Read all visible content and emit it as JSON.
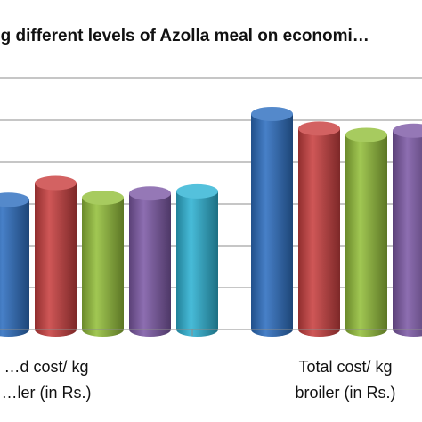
{
  "chart_data": {
    "type": "bar",
    "title": "…ng different levels of Azolla meal on economi…",
    "categories": [
      {
        "line1": "…d cost/ kg",
        "line2": "…ler (in Rs.)"
      },
      {
        "line1": "Total cost/ kg",
        "line2": "broiler (in Rs.)"
      }
    ],
    "series": [
      {
        "color": "#2e6fc0",
        "values": [
          62,
          103
        ]
      },
      {
        "color": "#c94040",
        "values": [
          70,
          96
        ]
      },
      {
        "color": "#94bf3c",
        "values": [
          63,
          93
        ]
      },
      {
        "color": "#7e5aa6",
        "values": [
          65,
          95
        ]
      },
      {
        "color": "#2fb3d4",
        "values": [
          66,
          null
        ]
      }
    ],
    "ylim": [
      0,
      120
    ],
    "grid": true,
    "legend": "none"
  }
}
